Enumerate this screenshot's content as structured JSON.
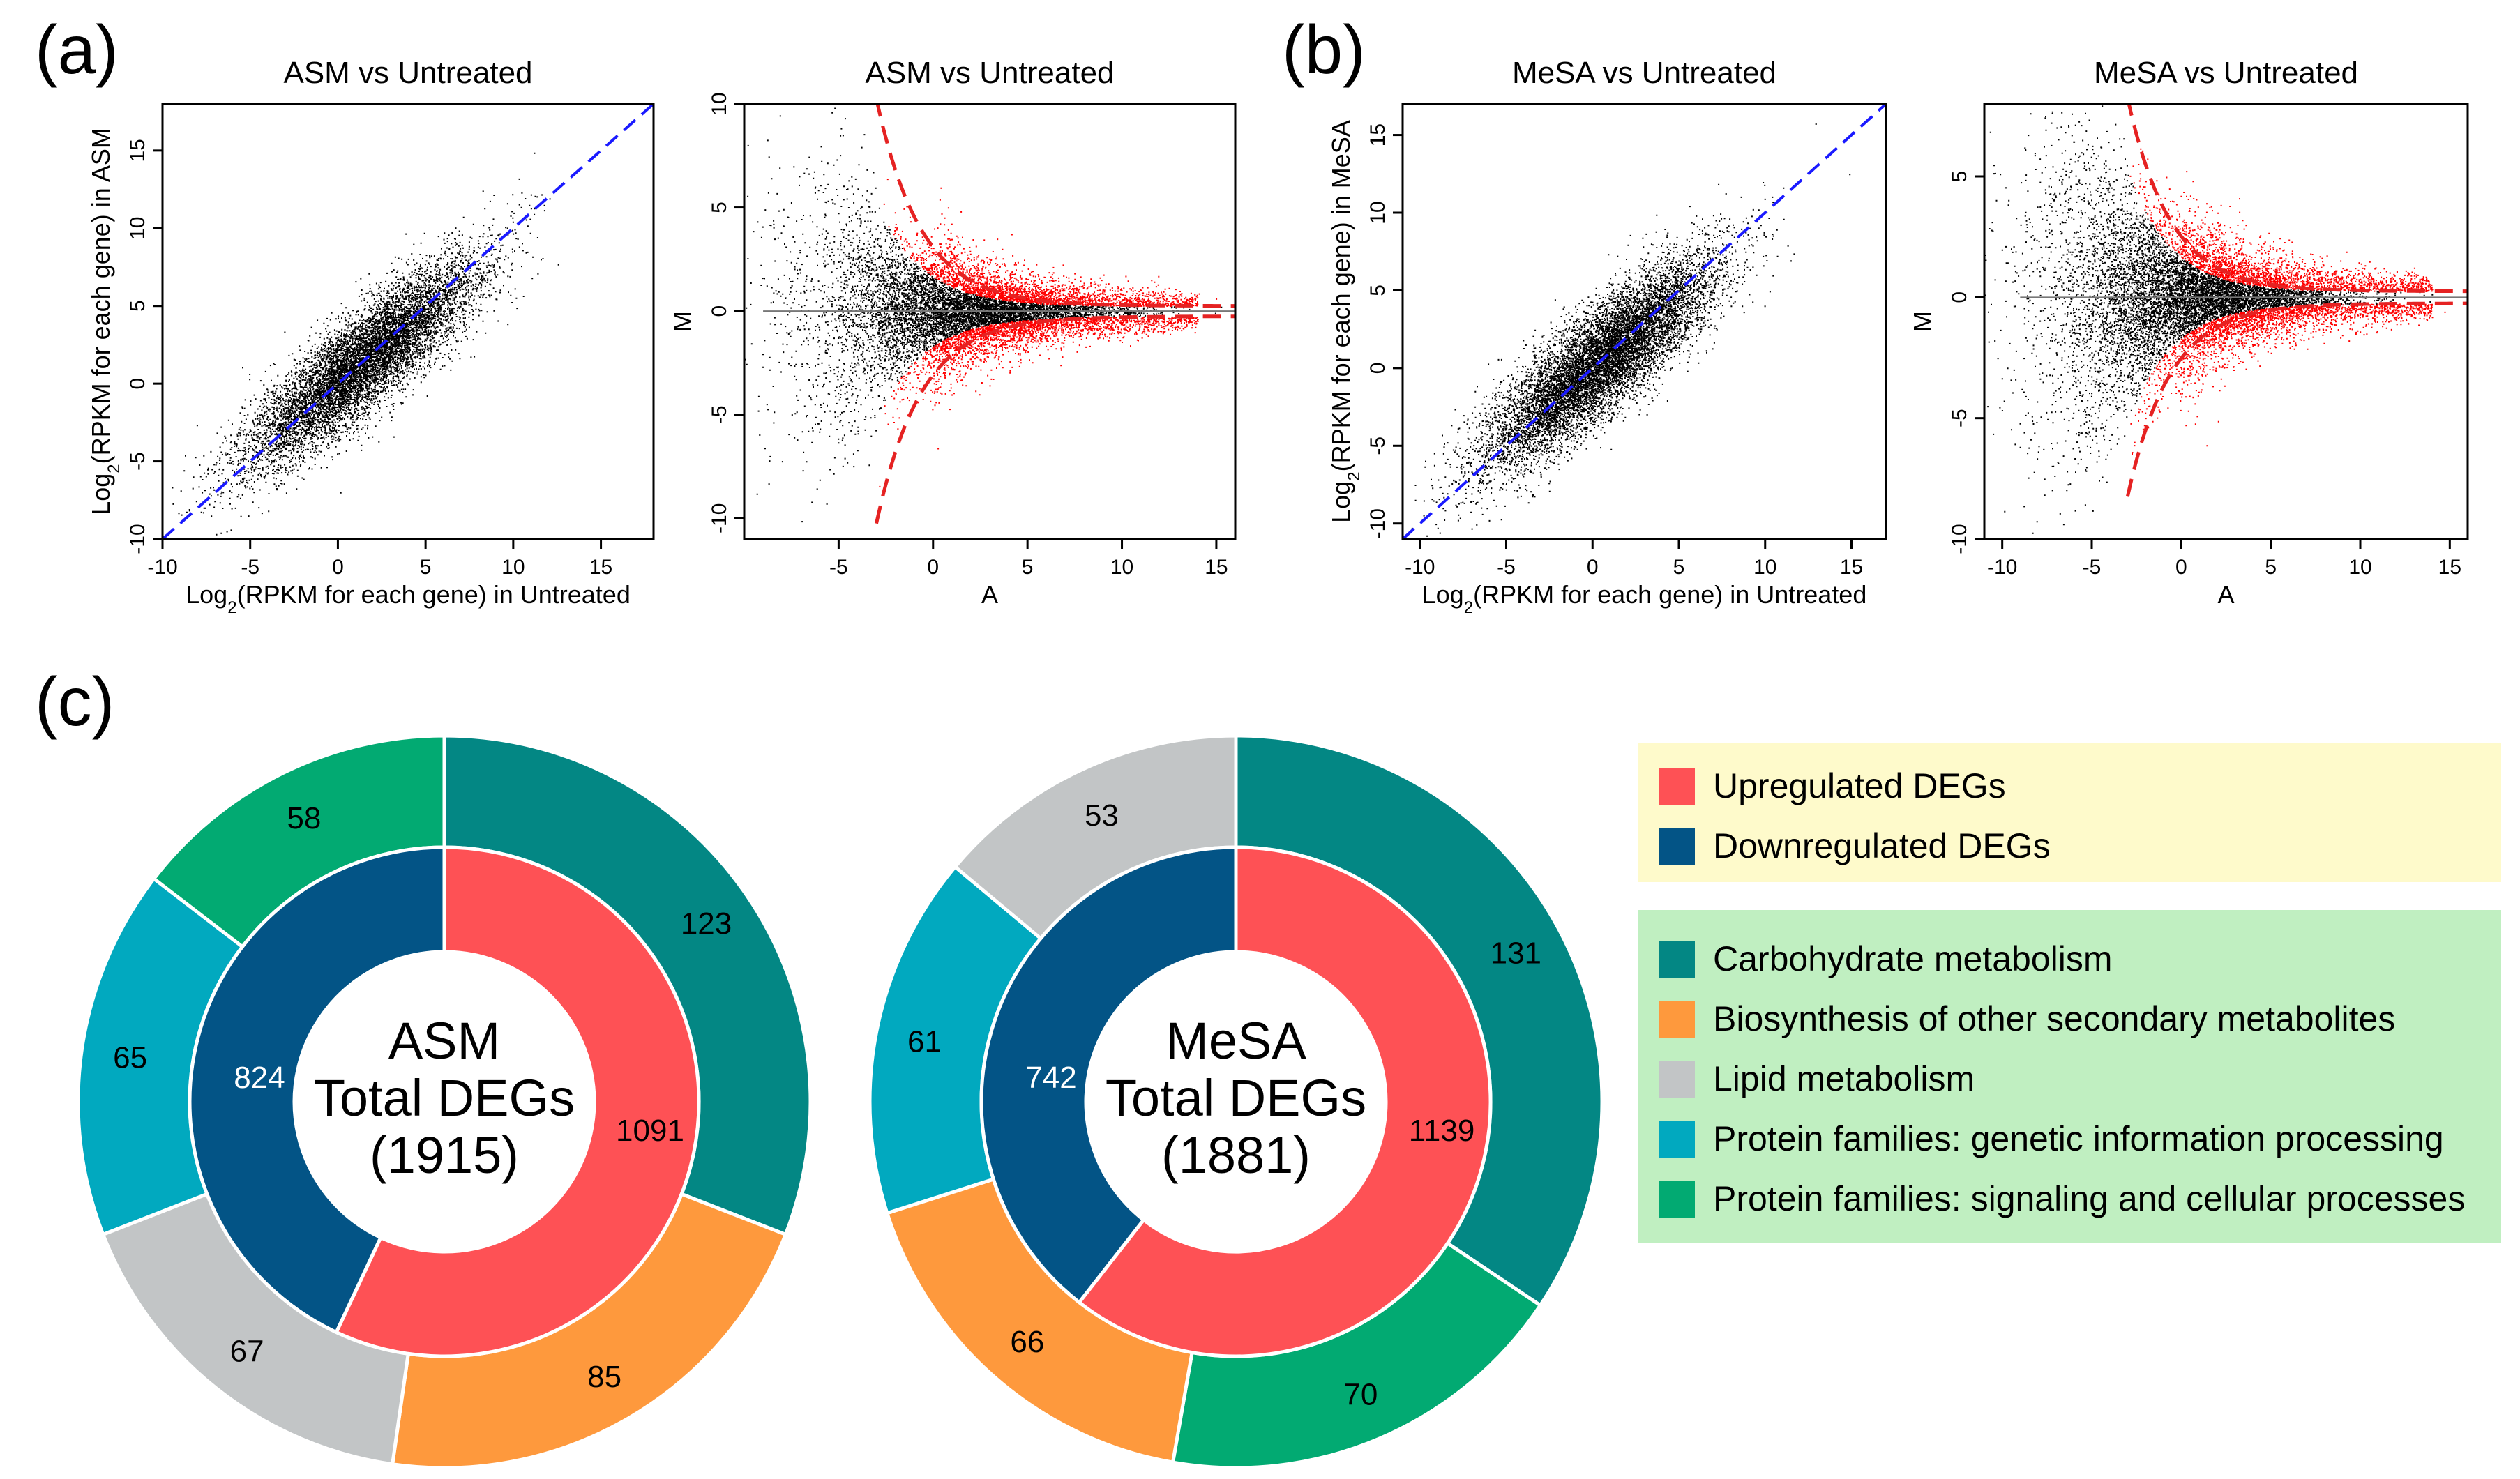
{
  "panel_labels": {
    "a": "(a)",
    "b": "(b)",
    "c": "(c)"
  },
  "colors": {
    "up": "#fe5155",
    "down": "#035486",
    "carbohydrate": "#038784",
    "biosynthesis": "#fe993d",
    "lipid": "#c2c5c6",
    "protein_genetic": "#01a9bf",
    "protein_signaling": "#02aa72",
    "legend_box_1": "#fefacb",
    "legend_box_2": "#c0efc1",
    "scatter_points": "#000000",
    "de_points": "#ff0000",
    "diagonal": "#1a1aff",
    "threshold": "#e52222"
  },
  "legend": {
    "deg_items": [
      {
        "label": "Upregulated DEGs",
        "color_key": "up"
      },
      {
        "label": "Downregulated DEGs",
        "color_key": "down"
      }
    ],
    "pathway_items": [
      {
        "label": "Carbohydrate metabolism",
        "color_key": "carbohydrate"
      },
      {
        "label": "Biosynthesis of other secondary metabolites",
        "color_key": "biosynthesis"
      },
      {
        "label": "Lipid metabolism",
        "color_key": "lipid"
      },
      {
        "label": "Protein families: genetic information processing",
        "color_key": "protein_genetic"
      },
      {
        "label": "Protein families: signaling and cellular processes",
        "color_key": "protein_signaling"
      }
    ]
  },
  "chart_data": [
    {
      "id": "asm-scatter",
      "type": "scatter",
      "title": "ASM vs Untreated",
      "xlabel_main": "Log",
      "xlabel_sub": "2",
      "xlabel_rest": "(RPKM for each gene) in Untreated",
      "ylabel_main": "Log",
      "ylabel_sub": "2",
      "ylabel_rest": "(RPKM for each gene) in ASM",
      "xlim": [
        -10,
        18
      ],
      "ylim": [
        -10,
        18
      ],
      "xticks": [
        -10,
        -5,
        0,
        5,
        10,
        15
      ],
      "yticks": [
        -10,
        -5,
        0,
        5,
        10,
        15
      ],
      "xtick_labels": [
        "-10",
        "-5",
        "0",
        "5",
        "10",
        "15"
      ],
      "ytick_labels": [
        "-10",
        "-5",
        "0",
        "5",
        "10",
        "15"
      ],
      "diagonal": "y = x",
      "cloud": {
        "center": [
          1.5,
          1.5
        ],
        "spread_along": 4.5,
        "spread_across": 1.2,
        "n": 9000
      }
    },
    {
      "id": "asm-ma",
      "type": "scatter",
      "title": "ASM vs Untreated",
      "xlabel": "A",
      "ylabel": "M",
      "xlim": [
        -10,
        16
      ],
      "ylim": [
        -11,
        10
      ],
      "xticks": [
        -5,
        0,
        5,
        10,
        15
      ],
      "yticks": [
        -10,
        -5,
        0,
        5,
        10
      ],
      "xtick_labels": [
        "-5",
        "0",
        "5",
        "10",
        "15"
      ],
      "ytick_labels": [
        "-10",
        "-5",
        "0",
        "5",
        "10"
      ],
      "threshold": {
        "amplitude": 2.2,
        "decay": 0.5,
        "x_start": -3
      },
      "cloud": {
        "center_a": 1.5,
        "spread_a": 4.0,
        "n": 9000
      }
    },
    {
      "id": "mesa-scatter",
      "type": "scatter",
      "title": "MeSA vs Untreated",
      "xlabel_main": "Log",
      "xlabel_sub": "2",
      "xlabel_rest": "(RPKM for each gene) in Untreated",
      "ylabel_main": "Log",
      "ylabel_sub": "2",
      "ylabel_rest": "(RPKM for each gene) in MeSA",
      "xlim": [
        -11,
        17
      ],
      "ylim": [
        -11,
        17
      ],
      "xticks": [
        -10,
        -5,
        0,
        5,
        10,
        15
      ],
      "yticks": [
        -10,
        -5,
        0,
        5,
        10,
        15
      ],
      "xtick_labels": [
        "-10",
        "-5",
        "0",
        "5",
        "10",
        "15"
      ],
      "ytick_labels": [
        "-10",
        "-5",
        "0",
        "5",
        "10",
        "15"
      ],
      "diagonal": "y = x",
      "cloud": {
        "center": [
          0.5,
          0.5
        ],
        "spread_along": 4.5,
        "spread_across": 1.3,
        "n": 10000
      }
    },
    {
      "id": "mesa-ma",
      "type": "scatter",
      "title": "MeSA vs Untreated",
      "xlabel": "A",
      "ylabel": "M",
      "xlim": [
        -11,
        16
      ],
      "ylim": [
        -10,
        8
      ],
      "xticks": [
        -10,
        -5,
        0,
        5,
        10,
        15
      ],
      "yticks": [
        -10,
        -5,
        0,
        5
      ],
      "xtick_labels": [
        "-10",
        "-5",
        "0",
        "5",
        "10",
        "15"
      ],
      "ytick_labels": [
        "-10",
        "-5",
        "0",
        "5"
      ],
      "threshold": {
        "amplitude": 1.7,
        "decay": 0.5,
        "x_start": -3
      },
      "cloud": {
        "center_a": 0.5,
        "spread_a": 4.0,
        "n": 10000
      }
    },
    {
      "id": "asm-donut",
      "type": "pie",
      "center_lines": [
        "ASM",
        "Total DEGs",
        "(1915)"
      ],
      "inner": [
        {
          "label": "Upregulated DEGs",
          "value": 1091,
          "color_key": "up"
        },
        {
          "label": "Downregulated DEGs",
          "value": 824,
          "color_key": "down"
        }
      ],
      "outer": [
        {
          "label": "Carbohydrate metabolism",
          "value": 123,
          "color_key": "carbohydrate"
        },
        {
          "label": "Biosynthesis of other secondary metabolites",
          "value": 85,
          "color_key": "biosynthesis"
        },
        {
          "label": "Lipid metabolism",
          "value": 67,
          "color_key": "lipid"
        },
        {
          "label": "Protein families: genetic information processing",
          "value": 65,
          "color_key": "protein_genetic"
        },
        {
          "label": "Protein families: signaling and cellular processes",
          "value": 58,
          "color_key": "protein_signaling"
        }
      ]
    },
    {
      "id": "mesa-donut",
      "type": "pie",
      "center_lines": [
        "MeSA",
        "Total DEGs",
        "(1881)"
      ],
      "inner": [
        {
          "label": "Upregulated DEGs",
          "value": 1139,
          "color_key": "up"
        },
        {
          "label": "Downregulated DEGs",
          "value": 742,
          "color_key": "down"
        }
      ],
      "outer": [
        {
          "label": "Carbohydrate metabolism",
          "value": 131,
          "color_key": "carbohydrate"
        },
        {
          "label": "Protein families: signaling and cellular processes",
          "value": 70,
          "color_key": "protein_signaling"
        },
        {
          "label": "Biosynthesis of other secondary metabolites",
          "value": 66,
          "color_key": "biosynthesis"
        },
        {
          "label": "Protein families: genetic information processing",
          "value": 61,
          "color_key": "protein_genetic"
        },
        {
          "label": "Lipid metabolism",
          "value": 53,
          "color_key": "lipid"
        }
      ]
    }
  ]
}
